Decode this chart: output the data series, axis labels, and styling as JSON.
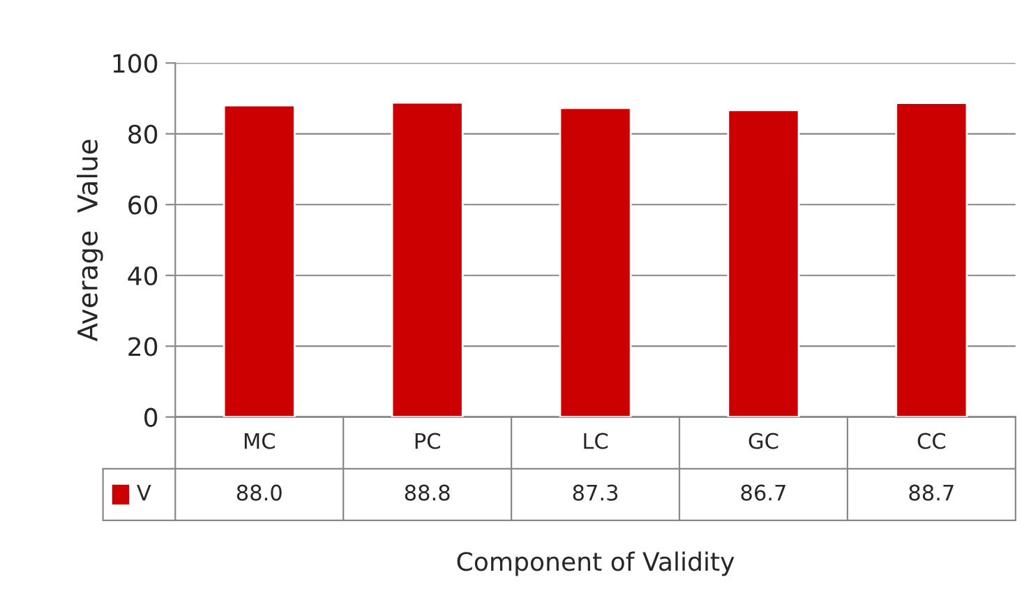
{
  "chart_data": {
    "type": "bar",
    "xlabel": "Component of Validity",
    "ylabel": "Average  Value",
    "categories": [
      "MC",
      "PC",
      "LC",
      "GC",
      "CC"
    ],
    "series": [
      {
        "name": "V",
        "color": "#cc0000",
        "values": [
          88.0,
          88.8,
          87.3,
          86.7,
          88.7
        ],
        "value_labels": [
          "88.0",
          "88.8",
          "87.3",
          "86.7",
          "88.7"
        ]
      }
    ],
    "ylim": [
      0,
      100
    ],
    "yticks": [
      0,
      20,
      40,
      60,
      80,
      100
    ],
    "grid": "y",
    "legend": "bottom"
  }
}
